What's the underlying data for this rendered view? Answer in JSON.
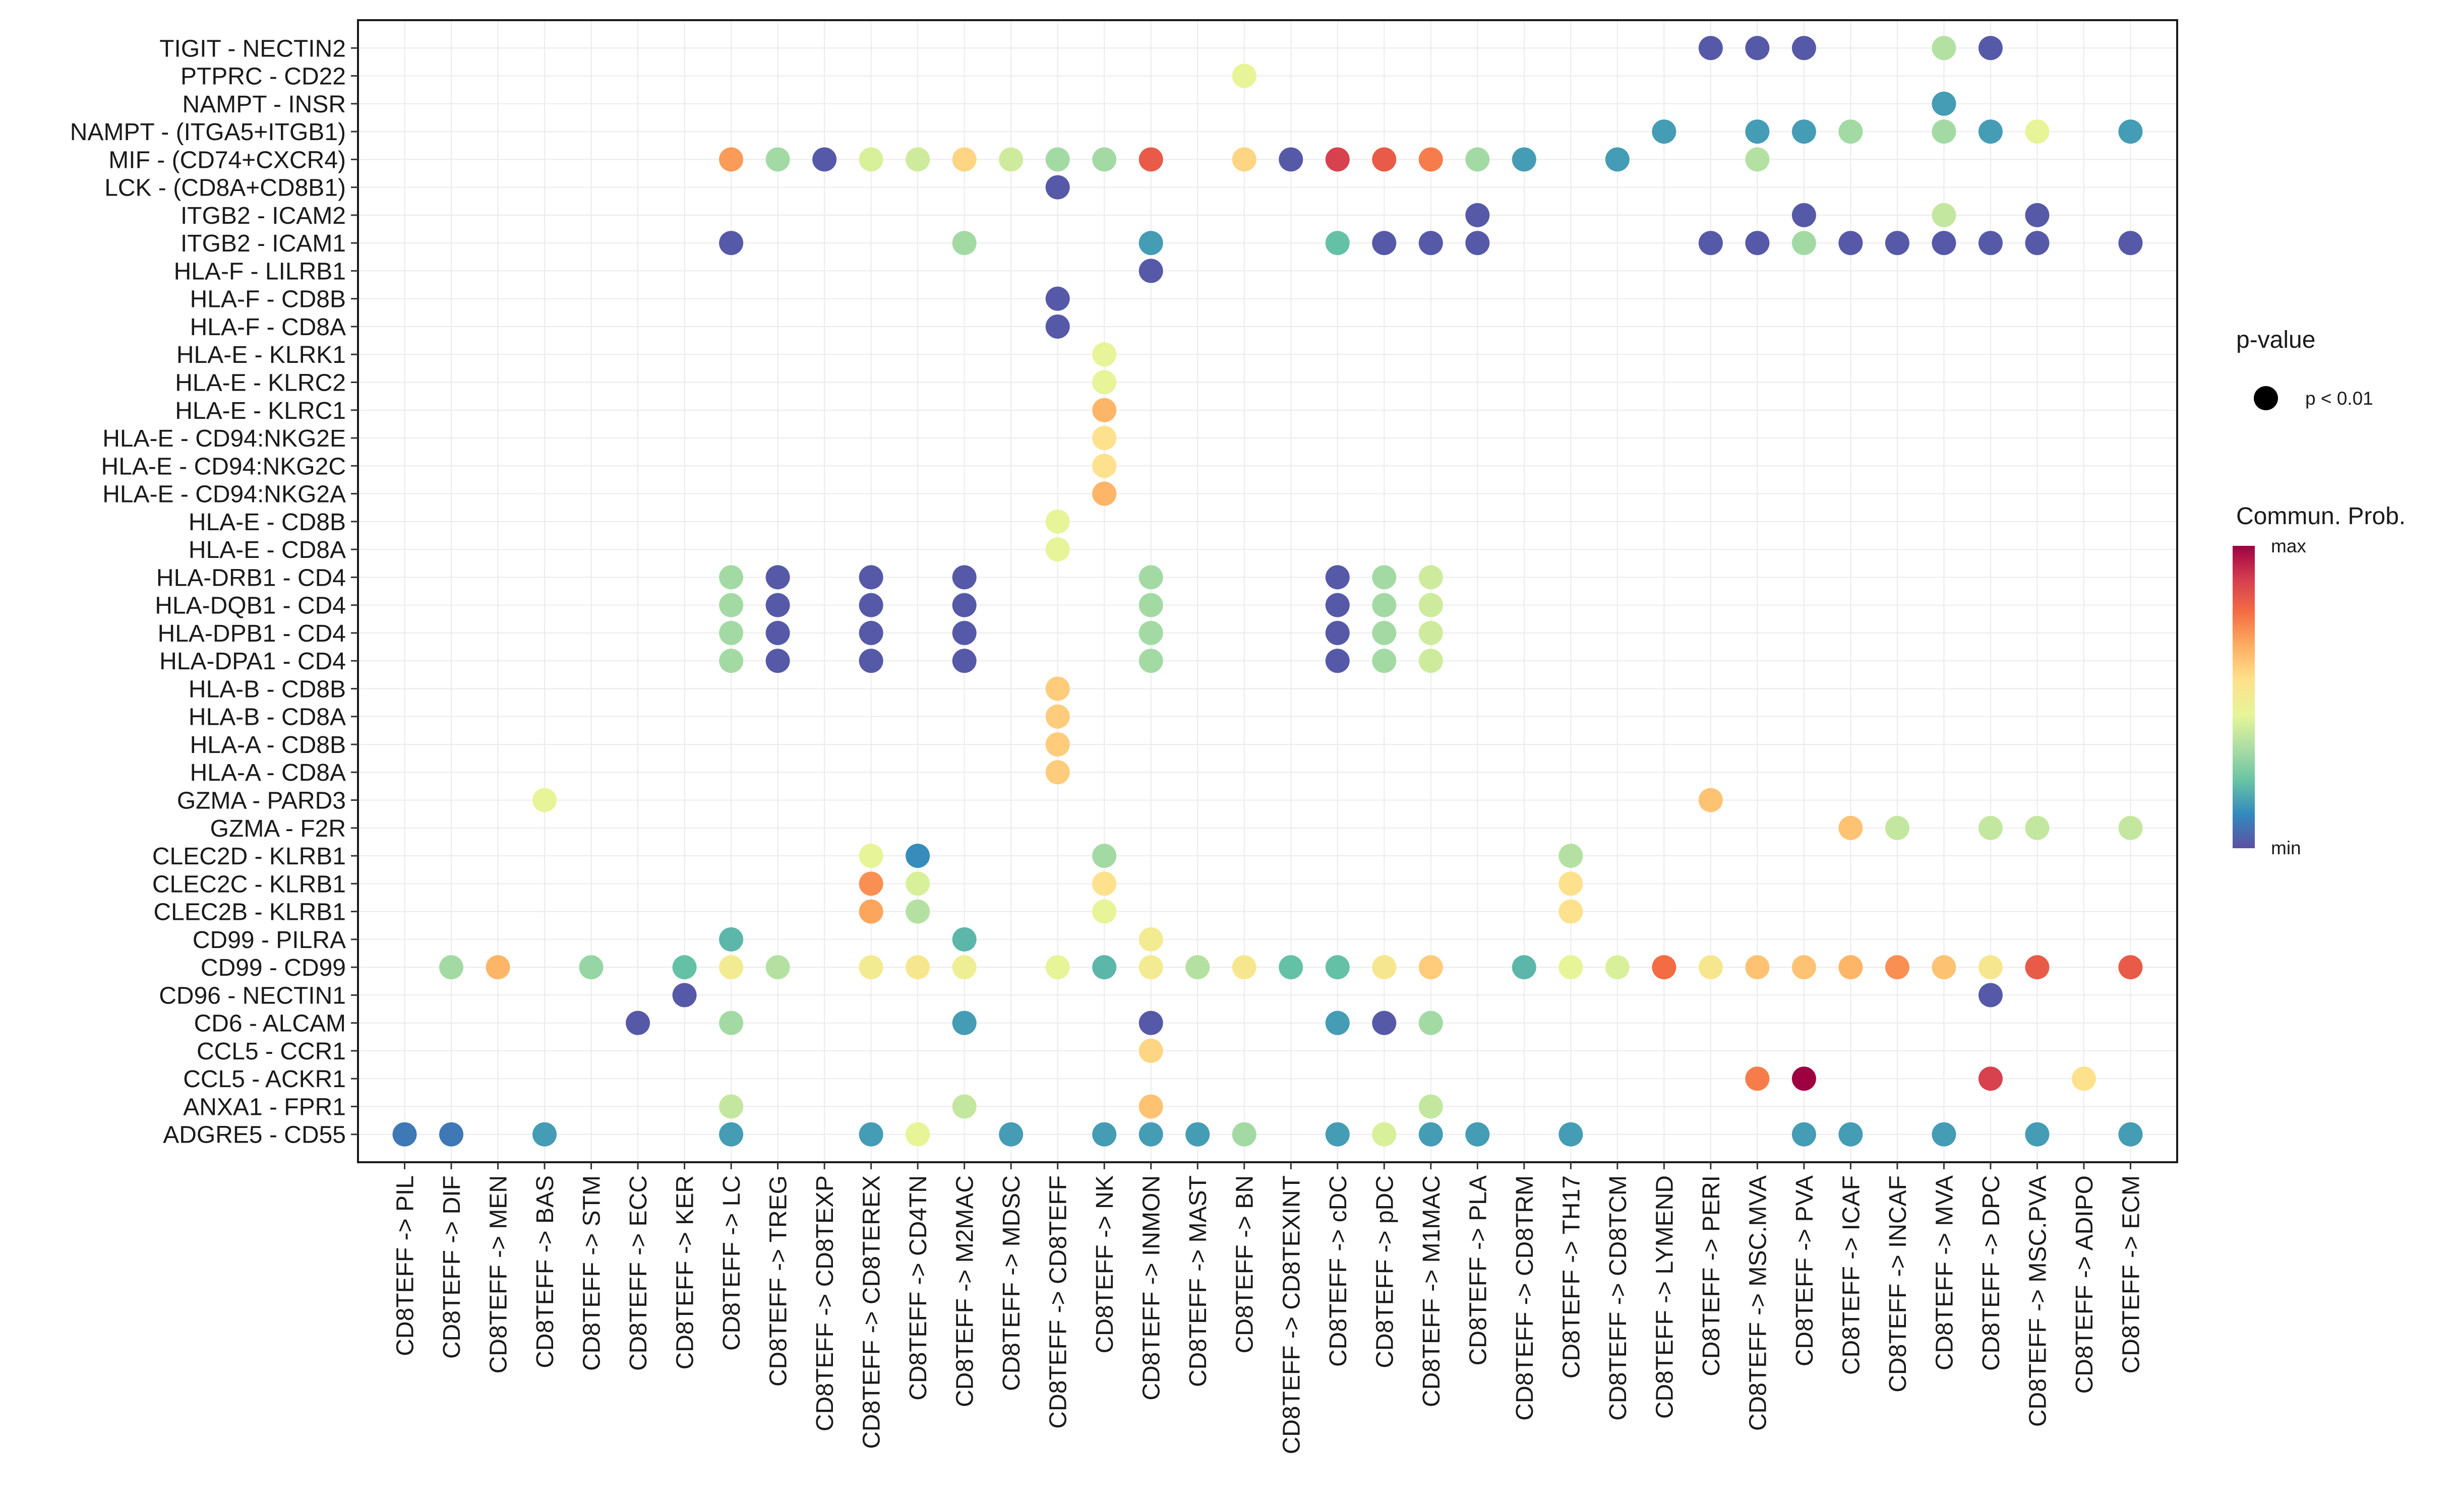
{
  "chart_data": {
    "type": "dot",
    "title": "",
    "xlabel": "",
    "ylabel": "",
    "x_categories": [
      "CD8TEFF -> PIL",
      "CD8TEFF -> DIF",
      "CD8TEFF -> MEN",
      "CD8TEFF -> BAS",
      "CD8TEFF -> STM",
      "CD8TEFF -> ECC",
      "CD8TEFF -> KER",
      "CD8TEFF -> LC",
      "CD8TEFF -> TREG",
      "CD8TEFF -> CD8TEXP",
      "CD8TEFF -> CD8TEREX",
      "CD8TEFF -> CD4TN",
      "CD8TEFF -> M2MAC",
      "CD8TEFF -> MDSC",
      "CD8TEFF -> CD8TEFF",
      "CD8TEFF -> NK",
      "CD8TEFF -> INMON",
      "CD8TEFF -> MAST",
      "CD8TEFF -> BN",
      "CD8TEFF -> CD8TEXINT",
      "CD8TEFF -> cDC",
      "CD8TEFF -> pDC",
      "CD8TEFF -> M1MAC",
      "CD8TEFF -> PLA",
      "CD8TEFF -> CD8TRM",
      "CD8TEFF -> TH17",
      "CD8TEFF -> CD8TCM",
      "CD8TEFF -> LYMEND",
      "CD8TEFF -> PERI",
      "CD8TEFF -> MSC.MVA",
      "CD8TEFF -> PVA",
      "CD8TEFF -> ICAF",
      "CD8TEFF -> INCAF",
      "CD8TEFF -> MVA",
      "CD8TEFF -> DPC",
      "CD8TEFF -> MSC.PVA",
      "CD8TEFF -> ADIPO",
      "CD8TEFF -> ECM"
    ],
    "y_categories": [
      "TIGIT - NECTIN2",
      "PTPRC - CD22",
      "NAMPT - INSR",
      "NAMPT - (ITGA5+ITGB1)",
      "MIF - (CD74+CXCR4)",
      "LCK - (CD8A+CD8B1)",
      "ITGB2 - ICAM2",
      "ITGB2 - ICAM1",
      "HLA-F - LILRB1",
      "HLA-F - CD8B",
      "HLA-F - CD8A",
      "HLA-E - KLRK1",
      "HLA-E - KLRC2",
      "HLA-E - KLRC1",
      "HLA-E - CD94:NKG2E",
      "HLA-E - CD94:NKG2C",
      "HLA-E - CD94:NKG2A",
      "HLA-E - CD8B",
      "HLA-E - CD8A",
      "HLA-DRB1 - CD4",
      "HLA-DQB1 - CD4",
      "HLA-DPB1 - CD4",
      "HLA-DPA1 - CD4",
      "HLA-B - CD8B",
      "HLA-B - CD8A",
      "HLA-A - CD8B",
      "HLA-A - CD8A",
      "GZMA - PARD3",
      "GZMA - F2R",
      "CLEC2D - KLRB1",
      "CLEC2C - KLRB1",
      "CLEC2B - KLRB1",
      "CD99 - PILRA",
      "CD99 - CD99",
      "CD96 - NECTIN1",
      "CD6 - ALCAM",
      "CCL5 - CCR1",
      "CCL5 - ACKR1",
      "ANXA1 - FPR1",
      "ADGRE5 - CD55"
    ],
    "points_note": "each point: [x_index, y_index, communication probability scaled 0 (min) to 1 (max)]; all shown points have p < 0.01",
    "points": [
      [
        28,
        0,
        0.02
      ],
      [
        29,
        0,
        0.02
      ],
      [
        30,
        0,
        0.02
      ],
      [
        33,
        0,
        0.35
      ],
      [
        34,
        0,
        0.02
      ],
      [
        18,
        1,
        0.45
      ],
      [
        33,
        2,
        0.15
      ],
      [
        27,
        3,
        0.15
      ],
      [
        29,
        3,
        0.15
      ],
      [
        30,
        3,
        0.15
      ],
      [
        31,
        3,
        0.32
      ],
      [
        33,
        3,
        0.32
      ],
      [
        34,
        3,
        0.15
      ],
      [
        35,
        3,
        0.45
      ],
      [
        37,
        3,
        0.15
      ],
      [
        7,
        4,
        0.7
      ],
      [
        8,
        4,
        0.32
      ],
      [
        9,
        4,
        0.02
      ],
      [
        10,
        4,
        0.42
      ],
      [
        11,
        4,
        0.4
      ],
      [
        12,
        4,
        0.58
      ],
      [
        13,
        4,
        0.4
      ],
      [
        14,
        4,
        0.32
      ],
      [
        15,
        4,
        0.32
      ],
      [
        16,
        4,
        0.82
      ],
      [
        18,
        4,
        0.58
      ],
      [
        19,
        4,
        0.02
      ],
      [
        20,
        4,
        0.88
      ],
      [
        21,
        4,
        0.82
      ],
      [
        22,
        4,
        0.75
      ],
      [
        23,
        4,
        0.32
      ],
      [
        24,
        4,
        0.15
      ],
      [
        26,
        4,
        0.15
      ],
      [
        29,
        4,
        0.35
      ],
      [
        14,
        5,
        0.02
      ],
      [
        23,
        6,
        0.02
      ],
      [
        30,
        6,
        0.02
      ],
      [
        33,
        6,
        0.38
      ],
      [
        35,
        6,
        0.02
      ],
      [
        7,
        7,
        0.02
      ],
      [
        12,
        7,
        0.32
      ],
      [
        16,
        7,
        0.15
      ],
      [
        20,
        7,
        0.22
      ],
      [
        21,
        7,
        0.02
      ],
      [
        22,
        7,
        0.02
      ],
      [
        23,
        7,
        0.02
      ],
      [
        28,
        7,
        0.02
      ],
      [
        29,
        7,
        0.02
      ],
      [
        30,
        7,
        0.32
      ],
      [
        31,
        7,
        0.02
      ],
      [
        32,
        7,
        0.02
      ],
      [
        33,
        7,
        0.02
      ],
      [
        34,
        7,
        0.02
      ],
      [
        35,
        7,
        0.02
      ],
      [
        37,
        7,
        0.02
      ],
      [
        16,
        8,
        0.02
      ],
      [
        14,
        9,
        0.02
      ],
      [
        14,
        10,
        0.02
      ],
      [
        15,
        11,
        0.45
      ],
      [
        15,
        12,
        0.45
      ],
      [
        15,
        13,
        0.65
      ],
      [
        15,
        14,
        0.55
      ],
      [
        15,
        15,
        0.55
      ],
      [
        15,
        16,
        0.65
      ],
      [
        14,
        17,
        0.45
      ],
      [
        14,
        18,
        0.45
      ],
      [
        7,
        19,
        0.32
      ],
      [
        8,
        19,
        0.02
      ],
      [
        10,
        19,
        0.02
      ],
      [
        12,
        19,
        0.02
      ],
      [
        16,
        19,
        0.32
      ],
      [
        20,
        19,
        0.02
      ],
      [
        21,
        19,
        0.32
      ],
      [
        22,
        19,
        0.4
      ],
      [
        7,
        20,
        0.32
      ],
      [
        8,
        20,
        0.02
      ],
      [
        10,
        20,
        0.02
      ],
      [
        12,
        20,
        0.02
      ],
      [
        16,
        20,
        0.32
      ],
      [
        20,
        20,
        0.02
      ],
      [
        21,
        20,
        0.32
      ],
      [
        22,
        20,
        0.4
      ],
      [
        7,
        21,
        0.32
      ],
      [
        8,
        21,
        0.02
      ],
      [
        10,
        21,
        0.02
      ],
      [
        12,
        21,
        0.02
      ],
      [
        16,
        21,
        0.32
      ],
      [
        20,
        21,
        0.02
      ],
      [
        21,
        21,
        0.32
      ],
      [
        22,
        21,
        0.4
      ],
      [
        7,
        22,
        0.32
      ],
      [
        8,
        22,
        0.02
      ],
      [
        10,
        22,
        0.02
      ],
      [
        12,
        22,
        0.02
      ],
      [
        16,
        22,
        0.32
      ],
      [
        20,
        22,
        0.02
      ],
      [
        21,
        22,
        0.32
      ],
      [
        22,
        22,
        0.4
      ],
      [
        14,
        23,
        0.6
      ],
      [
        14,
        24,
        0.6
      ],
      [
        14,
        25,
        0.6
      ],
      [
        14,
        26,
        0.6
      ],
      [
        3,
        27,
        0.45
      ],
      [
        28,
        27,
        0.62
      ],
      [
        31,
        28,
        0.62
      ],
      [
        32,
        28,
        0.38
      ],
      [
        34,
        28,
        0.38
      ],
      [
        35,
        28,
        0.38
      ],
      [
        37,
        28,
        0.38
      ],
      [
        10,
        29,
        0.45
      ],
      [
        11,
        29,
        0.12
      ],
      [
        15,
        29,
        0.32
      ],
      [
        25,
        29,
        0.35
      ],
      [
        10,
        30,
        0.72
      ],
      [
        11,
        30,
        0.42
      ],
      [
        15,
        30,
        0.55
      ],
      [
        25,
        30,
        0.55
      ],
      [
        10,
        31,
        0.68
      ],
      [
        11,
        31,
        0.35
      ],
      [
        15,
        31,
        0.45
      ],
      [
        25,
        31,
        0.55
      ],
      [
        7,
        32,
        0.2
      ],
      [
        12,
        32,
        0.2
      ],
      [
        16,
        32,
        0.5
      ],
      [
        1,
        33,
        0.32
      ],
      [
        2,
        33,
        0.65
      ],
      [
        4,
        33,
        0.3
      ],
      [
        6,
        33,
        0.22
      ],
      [
        7,
        33,
        0.5
      ],
      [
        8,
        33,
        0.35
      ],
      [
        10,
        33,
        0.5
      ],
      [
        11,
        33,
        0.52
      ],
      [
        12,
        33,
        0.48
      ],
      [
        14,
        33,
        0.45
      ],
      [
        15,
        33,
        0.2
      ],
      [
        16,
        33,
        0.5
      ],
      [
        17,
        33,
        0.35
      ],
      [
        18,
        33,
        0.52
      ],
      [
        19,
        33,
        0.22
      ],
      [
        20,
        33,
        0.22
      ],
      [
        21,
        33,
        0.52
      ],
      [
        22,
        33,
        0.6
      ],
      [
        24,
        33,
        0.2
      ],
      [
        25,
        33,
        0.45
      ],
      [
        26,
        33,
        0.42
      ],
      [
        27,
        33,
        0.78
      ],
      [
        28,
        33,
        0.52
      ],
      [
        29,
        33,
        0.62
      ],
      [
        30,
        33,
        0.62
      ],
      [
        31,
        33,
        0.65
      ],
      [
        32,
        33,
        0.72
      ],
      [
        33,
        33,
        0.62
      ],
      [
        34,
        33,
        0.52
      ],
      [
        35,
        33,
        0.82
      ],
      [
        37,
        33,
        0.82
      ],
      [
        6,
        34,
        0.02
      ],
      [
        34,
        34,
        0.02
      ],
      [
        5,
        35,
        0.02
      ],
      [
        7,
        35,
        0.32
      ],
      [
        12,
        35,
        0.15
      ],
      [
        16,
        35,
        0.02
      ],
      [
        20,
        35,
        0.15
      ],
      [
        21,
        35,
        0.02
      ],
      [
        22,
        35,
        0.32
      ],
      [
        16,
        36,
        0.58
      ],
      [
        29,
        37,
        0.75
      ],
      [
        30,
        37,
        1.0
      ],
      [
        34,
        37,
        0.88
      ],
      [
        36,
        37,
        0.55
      ],
      [
        7,
        38,
        0.38
      ],
      [
        12,
        38,
        0.38
      ],
      [
        16,
        38,
        0.62
      ],
      [
        22,
        38,
        0.38
      ],
      [
        0,
        39,
        0.08
      ],
      [
        1,
        39,
        0.08
      ],
      [
        3,
        39,
        0.15
      ],
      [
        7,
        39,
        0.15
      ],
      [
        10,
        39,
        0.15
      ],
      [
        11,
        39,
        0.45
      ],
      [
        13,
        39,
        0.15
      ],
      [
        15,
        39,
        0.15
      ],
      [
        16,
        39,
        0.15
      ],
      [
        17,
        39,
        0.15
      ],
      [
        18,
        39,
        0.32
      ],
      [
        20,
        39,
        0.15
      ],
      [
        21,
        39,
        0.42
      ],
      [
        22,
        39,
        0.15
      ],
      [
        23,
        39,
        0.15
      ],
      [
        25,
        39,
        0.15
      ],
      [
        30,
        39,
        0.15
      ],
      [
        31,
        39,
        0.15
      ],
      [
        33,
        39,
        0.15
      ],
      [
        35,
        39,
        0.15
      ],
      [
        37,
        39,
        0.15
      ]
    ],
    "legend_pvalue": {
      "title": "p-value",
      "entry": "p < 0.01"
    },
    "legend_color": {
      "title": "Commun. Prob.",
      "max_label": "max",
      "min_label": "min"
    },
    "colors": [
      "#5e4fa2",
      "#3288bd",
      "#66c2a5",
      "#abdda4",
      "#e6f598",
      "#fee08b",
      "#fdae61",
      "#f46d43",
      "#d53e4f",
      "#9e0142"
    ]
  }
}
